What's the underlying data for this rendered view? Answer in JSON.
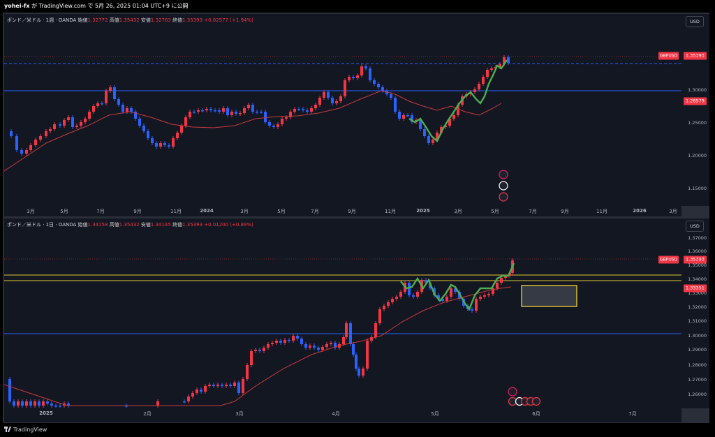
{
  "header": {
    "user": "yohei-fx",
    "text": " が TradingView.com で 5月 26, 2025 01:04 UTC+9 に公開"
  },
  "footer": {
    "brand": "TradingView"
  },
  "colors": {
    "up": "#f23645",
    "down": "#2962ff",
    "ma": "#c93a3e",
    "signal": "#4caf50",
    "zone": "#e6c532",
    "bg": "#131722"
  },
  "weekly": {
    "legend": {
      "title": "ポンド／米ドル · 1週 · OANDA",
      "open_label": "始値",
      "open": "1.32772",
      "high_label": "高値",
      "high": "1.35432",
      "low_label": "安値",
      "low": "1.32763",
      "close_label": "終値",
      "close": "1.35393",
      "change": "+0.02577 (+1.94%)"
    },
    "currency": "USD",
    "price_labels": [
      "1.30000",
      "1.25000",
      "1.20000",
      "1.15000"
    ],
    "symbol_tag": "GBPUSD",
    "last_price": "1.35393",
    "ma_price": "1.28579",
    "time_labels": [
      "3月",
      "5月",
      "7月",
      "9月",
      "11月",
      "2024",
      "3月",
      "5月",
      "7月",
      "9月",
      "11月",
      "2025",
      "3月",
      "5月",
      "7月",
      "9月",
      "11月",
      "2026",
      "3月"
    ]
  },
  "daily": {
    "legend": {
      "title": "ポンド／米ドル · 1日 · OANDA",
      "open_label": "始値",
      "open": "1.34158",
      "high_label": "高値",
      "high": "1.35432",
      "low_label": "安値",
      "low": "1.34145",
      "close_label": "終値",
      "close": "1.35393",
      "change": "+0.01200 (+0.89%)"
    },
    "currency": "USD",
    "price_labels": [
      "1.37000",
      "1.36000",
      "1.35000",
      "1.34000",
      "1.33000",
      "1.32000",
      "1.31000",
      "1.30000",
      "1.29000",
      "1.28000",
      "1.27000",
      "1.26000"
    ],
    "symbol_tag": "GBPUSD",
    "last_price": "1.35393",
    "ma_price": "1.33351",
    "time_labels": [
      "2025",
      "2月",
      "3月",
      "4月",
      "5月",
      "6月",
      "7月"
    ]
  }
}
